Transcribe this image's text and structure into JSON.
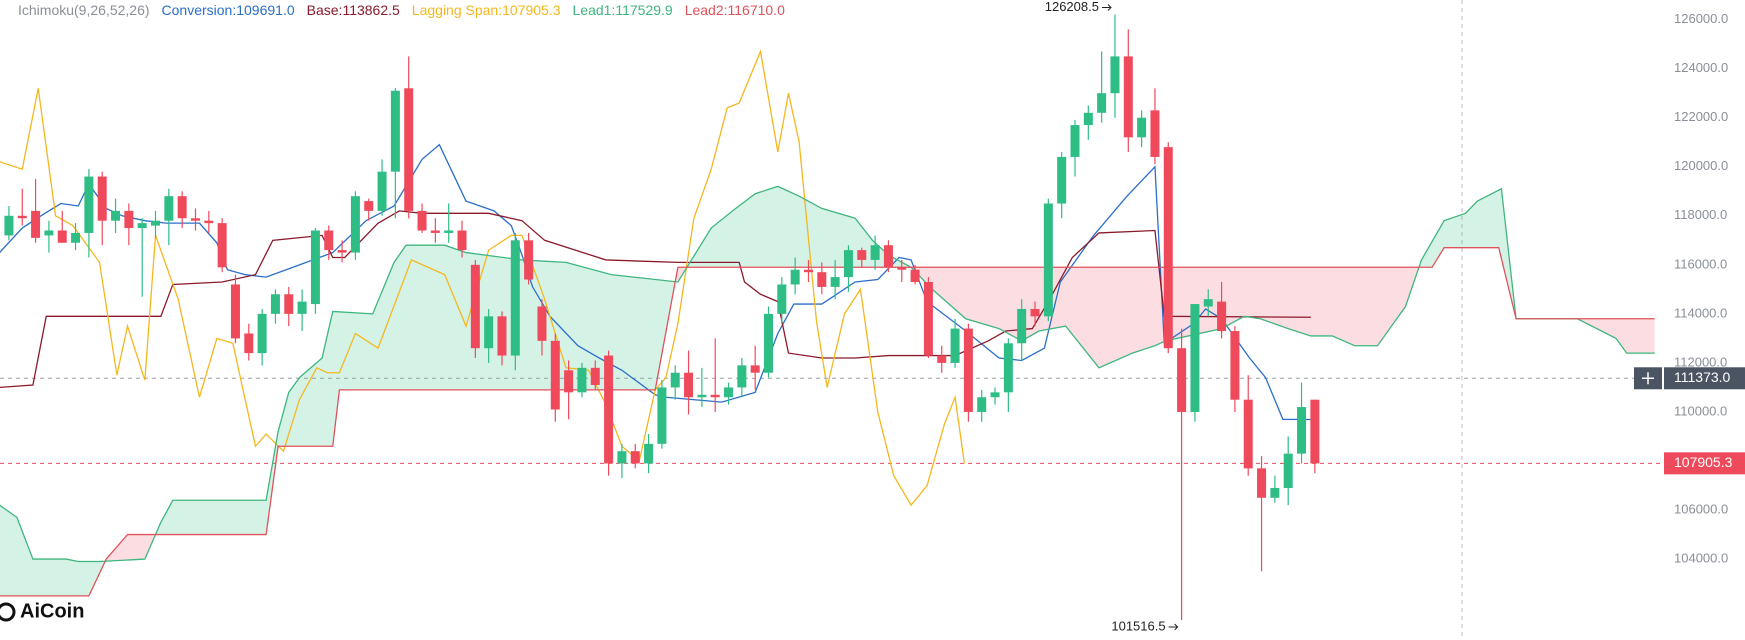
{
  "chart_data": {
    "type": "candlestick",
    "indicator": "Ichimoku(9,26,52,26)",
    "indicator_color": "#8a8f98",
    "color_up": "#2ebd85",
    "color_down": "#ef4a5c",
    "cloud_up_color": "rgba(46,189,133,0.2)",
    "cloud_down_color": "rgba(239,74,92,0.18)",
    "xlim": [
      -0.67,
      124.2
    ],
    "ylim": [
      100700,
      126800
    ],
    "yticks": [
      {
        "value": 104000,
        "label": "104000.0"
      },
      {
        "value": 106000,
        "label": "106000.0"
      },
      {
        "value": 108000,
        "label": "108000.0"
      },
      {
        "value": 110000,
        "label": "110000.0"
      },
      {
        "value": 112000,
        "label": "112000.0"
      },
      {
        "value": 114000,
        "label": "114000.0"
      },
      {
        "value": 116000,
        "label": "116000.0"
      },
      {
        "value": 118000,
        "label": "118000.0"
      },
      {
        "value": 120000,
        "label": "120000.0"
      },
      {
        "value": 122000,
        "label": "122000.0"
      },
      {
        "value": 124000,
        "label": "124000.0"
      },
      {
        "value": 126000,
        "label": "126000.0"
      }
    ],
    "open": [
      117200,
      118000,
      118200,
      117200,
      117400,
      116900,
      117300,
      119600,
      117800,
      118200,
      117500,
      117600,
      117800,
      118800,
      117900,
      117800,
      117700,
      115200,
      113200,
      112400,
      114000,
      114800,
      114000,
      114400,
      117400,
      116600,
      116500,
      118600,
      118200,
      119800,
      123200,
      118200,
      117400,
      117300,
      117400,
      116000,
      112600,
      113900,
      112300,
      117000,
      114300,
      112900,
      111700,
      110800,
      111800,
      112300,
      107900,
      108400,
      107900,
      108700,
      111000,
      111600,
      110600,
      110700,
      110600,
      111000,
      111900,
      111600,
      114000,
      115200,
      115800,
      115700,
      115100,
      115500,
      116600,
      116200,
      116800,
      115900,
      115800,
      115300,
      112300,
      112000,
      113400,
      110000,
      110600,
      110800,
      112800,
      114200,
      113900,
      118500,
      120400,
      121700,
      122200,
      123000,
      124500,
      121200,
      122300,
      120800,
      112600,
      110000,
      114300,
      114500,
      113300,
      110500,
      107700,
      106500,
      106900,
      108300,
      110500
    ],
    "high": [
      118400,
      119100,
      119500,
      117800,
      118200,
      117700,
      119900,
      119800,
      118700,
      118500,
      117900,
      118200,
      119100,
      119000,
      118300,
      118200,
      117900,
      115600,
      113600,
      114200,
      115000,
      115100,
      115000,
      117500,
      117600,
      117000,
      119000,
      118700,
      120300,
      123200,
      124500,
      118500,
      117900,
      118500,
      117800,
      116200,
      114200,
      114100,
      117300,
      117300,
      114600,
      113200,
      112100,
      112000,
      112100,
      112500,
      108700,
      108700,
      109100,
      111300,
      111900,
      112500,
      111800,
      113000,
      111200,
      112200,
      112700,
      114300,
      115500,
      116300,
      116200,
      116100,
      116200,
      116800,
      116700,
      117200,
      117000,
      116200,
      116000,
      115500,
      112700,
      113800,
      113600,
      110900,
      111000,
      113000,
      114600,
      114500,
      118700,
      120600,
      121900,
      122500,
      124700,
      126208.5,
      125600,
      122300,
      123200,
      121000,
      113400,
      114400,
      115000,
      115300,
      113500,
      111500,
      108200,
      107400,
      109000,
      111200,
      110500
    ],
    "low": [
      117000,
      117600,
      116900,
      116500,
      116900,
      116600,
      116300,
      116800,
      117300,
      116800,
      114700,
      117100,
      116800,
      117500,
      117400,
      117300,
      115700,
      112800,
      112100,
      111900,
      113600,
      113500,
      113300,
      114000,
      116200,
      116100,
      116200,
      117800,
      118000,
      117900,
      117900,
      117300,
      116900,
      116900,
      116300,
      112200,
      112000,
      111900,
      111700,
      115200,
      112300,
      109600,
      109700,
      110600,
      110900,
      107400,
      107300,
      107700,
      107500,
      108500,
      110500,
      109900,
      110200,
      110000,
      110300,
      110600,
      110900,
      111400,
      113600,
      114800,
      115300,
      114800,
      114600,
      114900,
      115900,
      115800,
      115700,
      115300,
      115200,
      112200,
      111600,
      111800,
      109600,
      109600,
      110300,
      110000,
      112100,
      113500,
      113700,
      117900,
      119600,
      121100,
      121800,
      122000,
      120600,
      120800,
      120100,
      112400,
      101516.5,
      109600,
      113900,
      113000,
      110000,
      107400,
      103500,
      106300,
      106200,
      107900,
      107500
    ],
    "close": [
      118000,
      117900,
      117100,
      117400,
      116900,
      117300,
      119600,
      117800,
      118200,
      117500,
      117700,
      117800,
      118800,
      117900,
      117800,
      117700,
      115900,
      113000,
      112400,
      114000,
      114800,
      114000,
      114500,
      117400,
      116600,
      116500,
      118800,
      118200,
      119800,
      123100,
      118200,
      117400,
      117300,
      117400,
      116600,
      112600,
      113900,
      112300,
      117000,
      115400,
      112900,
      110100,
      110800,
      111800,
      111100,
      107900,
      108400,
      107900,
      108700,
      111000,
      111600,
      110600,
      110700,
      110600,
      111000,
      111900,
      111600,
      114000,
      115200,
      115800,
      115700,
      115100,
      115500,
      116600,
      116200,
      116800,
      115900,
      115800,
      115300,
      112300,
      112000,
      113400,
      110000,
      110600,
      110800,
      112800,
      114200,
      113900,
      118500,
      120400,
      121700,
      122200,
      123000,
      124500,
      121200,
      122000,
      120400,
      112600,
      110000,
      114400,
      114600,
      113300,
      110500,
      107700,
      106500,
      106900,
      108300,
      110200,
      107900
    ],
    "series": [
      {
        "name": "Conversion:109691.0",
        "color": "#2a6fc9",
        "x": [
          -0.7,
          1,
          2.7,
          3.9,
          5.2,
          6,
          7.3,
          8.5,
          10.2,
          11.8,
          14.3,
          15.6,
          16.4,
          17.7,
          19.3,
          21.8,
          24.3,
          26.8,
          28.9,
          31,
          32.3,
          34.3,
          36.4,
          37.7,
          38.5,
          39.3,
          40.6,
          42.7,
          44.3,
          46,
          48.5,
          49.3,
          53.5,
          56,
          57.7,
          58.9,
          61,
          63.5,
          65.2,
          66.8,
          67.7,
          68.9,
          71.8,
          74.3,
          76,
          77.7,
          78.9,
          81.4,
          83.9,
          86,
          86.7,
          88.9,
          89.8,
          91,
          93.1,
          94.3,
          95.6,
          97.7
        ],
        "values": [
          116500,
          117500,
          118100,
          118500,
          118400,
          119300,
          118300,
          118000,
          117800,
          117700,
          117700,
          116900,
          115800,
          115600,
          115500,
          116000,
          116500,
          117800,
          118400,
          120300,
          120900,
          118600,
          118200,
          117600,
          116400,
          115100,
          113900,
          112700,
          112200,
          111700,
          110700,
          110600,
          110400,
          110800,
          113200,
          114400,
          114400,
          115300,
          115400,
          116300,
          116200,
          114500,
          113300,
          112200,
          112100,
          112600,
          115300,
          117200,
          118800,
          120000,
          112800,
          113600,
          114200,
          113800,
          112200,
          111400,
          109700,
          109691
        ]
      },
      {
        "name": "Base:113862.5",
        "color": "#8b1a2b",
        "x": [
          -0.7,
          1.8,
          2.8,
          11.4,
          12.3,
          16,
          18.5,
          19.8,
          23.5,
          24.3,
          25.2,
          27.7,
          29.3,
          31,
          36,
          38.5,
          40.2,
          44.8,
          50.2,
          54.8,
          55.2,
          56.4,
          57.7,
          58.5,
          61,
          63.5,
          66,
          71,
          73.5,
          74.8,
          76.8,
          78.1,
          79.8,
          81.8,
          86,
          86.7,
          97.7
        ],
        "values": [
          111000,
          111100,
          113900,
          113900,
          115200,
          115300,
          115600,
          117000,
          117200,
          116300,
          116300,
          117700,
          118200,
          118100,
          118100,
          117800,
          117000,
          116200,
          116100,
          116100,
          115300,
          114800,
          114500,
          112400,
          112200,
          112200,
          112300,
          112300,
          112900,
          113300,
          113400,
          114600,
          116300,
          117300,
          117400,
          113900,
          113862.5
        ]
      },
      {
        "name": "Lagging Span:107905.3",
        "color": "#f5b71e",
        "x": [
          -0.7,
          1,
          2.2,
          3.5,
          4.8,
          6.8,
          8.1,
          8.9,
          10.2,
          11,
          12.7,
          14.3,
          15.6,
          16.8,
          18.5,
          19.3,
          20.6,
          21.8,
          23.1,
          23.9,
          24.8,
          26,
          27.7,
          30.2,
          32.7,
          34.3,
          36,
          37.7,
          38.5,
          40.2,
          41.8,
          43.5,
          44.8,
          46,
          47.3,
          48.5,
          49.3,
          50.2,
          51.4,
          52.7,
          53.9,
          54.8,
          56.4,
          57.7,
          58.5,
          59.3,
          60.6,
          61.4,
          62.7,
          63.9,
          65.2,
          66.4,
          67.7,
          68.9,
          70.2,
          71,
          71.7
        ],
        "values": [
          120200,
          119900,
          123200,
          118000,
          117600,
          116100,
          111500,
          113500,
          111300,
          117200,
          114600,
          110600,
          113000,
          112800,
          108600,
          109100,
          108400,
          110500,
          111800,
          111600,
          111600,
          113200,
          112600,
          116200,
          115600,
          113500,
          116600,
          117200,
          117200,
          114600,
          111800,
          111700,
          110300,
          108600,
          108000,
          110900,
          111400,
          113600,
          117900,
          119900,
          122400,
          122600,
          124700,
          120600,
          123000,
          121000,
          113700,
          111000,
          114000,
          115000,
          110000,
          107400,
          106200,
          107000,
          109500,
          110600,
          107905.3
        ]
      },
      {
        "name": "Lead1:117529.9",
        "color": "#3fb67f",
        "x": [
          -0.7,
          0.6,
          1.8,
          4.3,
          5.2,
          6.8,
          10.2,
          11.4,
          12.3,
          19.3,
          20.2,
          21,
          21.8,
          23.5,
          24.3,
          27.3,
          28.9,
          29.8,
          32.7,
          34.3,
          38.5,
          41.8,
          45.2,
          50.2,
          52.7,
          54.3,
          56,
          57.7,
          59.3,
          61,
          63.5,
          64.8,
          66,
          67.7,
          69.3,
          71.8,
          74.3,
          76,
          77.3,
          79.3,
          81.8,
          84.3,
          86,
          86.8,
          88.5,
          91,
          92.7,
          93.9,
          96,
          97.7,
          99.3,
          101,
          102.7,
          104.8,
          106,
          107.7,
          109.3,
          110.2,
          112,
          113.1,
          117.7,
          120.6,
          121.4,
          123.5
        ],
        "values": [
          106200,
          105700,
          104000,
          104000,
          103900,
          103900,
          104000,
          105500,
          106400,
          106400,
          109200,
          110800,
          111400,
          112200,
          114100,
          114000,
          116100,
          116800,
          116800,
          116500,
          116200,
          116100,
          115600,
          115300,
          117500,
          118200,
          118900,
          119200,
          118800,
          118300,
          117900,
          117000,
          116400,
          115900,
          115000,
          113800,
          113400,
          112900,
          113300,
          113500,
          111800,
          112400,
          112700,
          112900,
          113100,
          113400,
          113900,
          113800,
          113400,
          113100,
          113100,
          112700,
          112700,
          114300,
          116200,
          117800,
          118100,
          118600,
          119100,
          113800,
          113800,
          113000,
          112400,
          112400
        ]
      },
      {
        "name": "Lead2:116710.0",
        "color": "#e0525a",
        "x": [
          -0.7,
          6,
          7.3,
          8.9,
          19.3,
          20.2,
          24.3,
          24.8,
          48.5,
          50.2,
          106.8,
          107.7,
          111.8,
          113.1,
          123.5
        ],
        "values": [
          102500,
          102500,
          104000,
          105000,
          105000,
          108600,
          108600,
          110900,
          110900,
          115900,
          115900,
          116700,
          116700,
          113800,
          113800
        ]
      }
    ],
    "price_lines": [
      {
        "value": 111373,
        "label": "111373.0",
        "color": "#9aa0a8",
        "box_color": "#4a5462"
      },
      {
        "value": 107905.3,
        "label": "107905.3",
        "color": "#ef4a5c",
        "box_color": "#ef4a5c"
      }
    ],
    "annotations": [
      {
        "value": 126208.5,
        "label": "126208.5"
      },
      {
        "value": 101516.5,
        "label": "101516.5"
      }
    ],
    "watermark": "AiCoin"
  }
}
